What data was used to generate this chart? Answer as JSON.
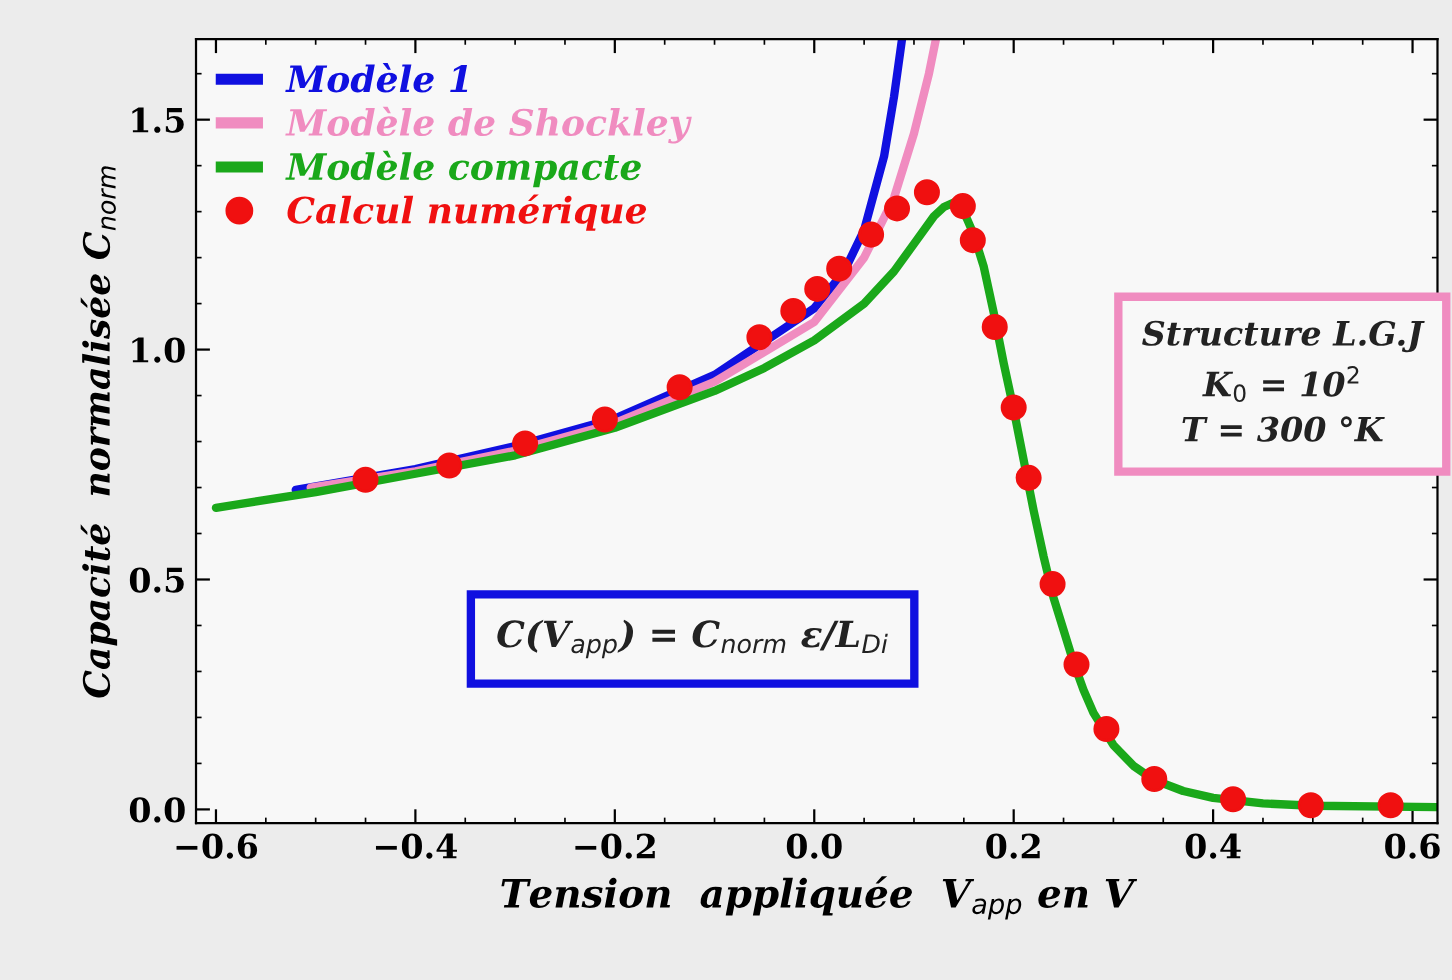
{
  "chart_data": {
    "type": "line",
    "xlabel": "Tension  appliquée  V$_{app}$ en V",
    "ylabel": "Capacité  normalisée C$_{norm}$",
    "xlim": [
      -0.62,
      0.625
    ],
    "ylim": [
      -0.03,
      1.675
    ],
    "xticks": [
      {
        "value": -0.6,
        "label": "−0.6"
      },
      {
        "value": -0.4,
        "label": "−0.4"
      },
      {
        "value": -0.2,
        "label": "−0.2"
      },
      {
        "value": 0,
        "label": "0.0"
      },
      {
        "value": 0.2,
        "label": "0.2"
      },
      {
        "value": 0.4,
        "label": "0.4"
      },
      {
        "value": 0.6,
        "label": "0.6"
      }
    ],
    "yticks": [
      {
        "value": 0,
        "label": "0.0"
      },
      {
        "value": 0.5,
        "label": "0.5"
      },
      {
        "value": 1,
        "label": "1.0"
      },
      {
        "value": 1.5,
        "label": "1.5"
      }
    ],
    "grid": false,
    "legend": "top left",
    "series": [
      {
        "name": "Modèle 1",
        "color": "#1010e0",
        "x": [
          -0.52,
          -0.4,
          -0.3,
          -0.2,
          -0.1,
          0,
          0.03,
          0.05,
          0.07,
          0.08,
          0.088
        ],
        "values": [
          0.695,
          0.74,
          0.79,
          0.85,
          0.945,
          1.09,
          1.17,
          1.26,
          1.42,
          1.55,
          1.675
        ]
      },
      {
        "name": "Modèle de Shockley",
        "color": "#f08cc0",
        "x": [
          -0.505,
          -0.4,
          -0.3,
          -0.2,
          -0.1,
          0,
          0.05,
          0.08,
          0.1,
          0.115,
          0.122
        ],
        "values": [
          0.7,
          0.735,
          0.78,
          0.84,
          0.93,
          1.06,
          1.2,
          1.33,
          1.47,
          1.6,
          1.675
        ]
      },
      {
        "name": "Modèle compacte",
        "color": "#1aa81a",
        "x": [
          -0.6,
          -0.5,
          -0.4,
          -0.3,
          -0.2,
          -0.1,
          -0.05,
          0,
          0.05,
          0.08,
          0.1,
          0.12,
          0.13,
          0.14,
          0.15,
          0.16,
          0.17,
          0.18,
          0.19,
          0.2,
          0.21,
          0.22,
          0.23,
          0.24,
          0.25,
          0.26,
          0.27,
          0.28,
          0.3,
          0.32,
          0.34,
          0.37,
          0.4,
          0.45,
          0.5,
          0.625
        ],
        "values": [
          0.656,
          0.69,
          0.73,
          0.77,
          0.83,
          0.91,
          0.96,
          1.02,
          1.1,
          1.17,
          1.23,
          1.29,
          1.31,
          1.32,
          1.3,
          1.25,
          1.18,
          1.08,
          0.97,
          0.87,
          0.76,
          0.65,
          0.55,
          0.46,
          0.39,
          0.32,
          0.26,
          0.21,
          0.14,
          0.095,
          0.065,
          0.04,
          0.025,
          0.013,
          0.008,
          0.005
        ]
      },
      {
        "name": "Calcul numérique",
        "type": "scatter",
        "marker": "circle",
        "color": "#f01010",
        "x": [
          -0.45,
          -0.366,
          -0.29,
          -0.21,
          -0.135,
          -0.055,
          -0.021,
          0.003,
          0.025,
          0.057,
          0.083,
          0.113,
          0.149,
          0.159,
          0.181,
          0.2,
          0.215,
          0.239,
          0.263,
          0.293,
          0.341,
          0.42,
          0.498,
          0.578
        ],
        "values": [
          0.717,
          0.748,
          0.796,
          0.848,
          0.918,
          1.027,
          1.084,
          1.132,
          1.176,
          1.25,
          1.307,
          1.342,
          1.312,
          1.238,
          1.049,
          0.874,
          0.721,
          0.49,
          0.315,
          0.175,
          0.066,
          0.022,
          0.009,
          0.009
        ]
      }
    ],
    "annotations": [
      "C(V$_{app}$) = C$_{norm}$ ε/L$_{Di}$",
      "Structure L.G.J\nK$_{0}$ = 10$^{2}$\nT = 300 °K"
    ]
  }
}
